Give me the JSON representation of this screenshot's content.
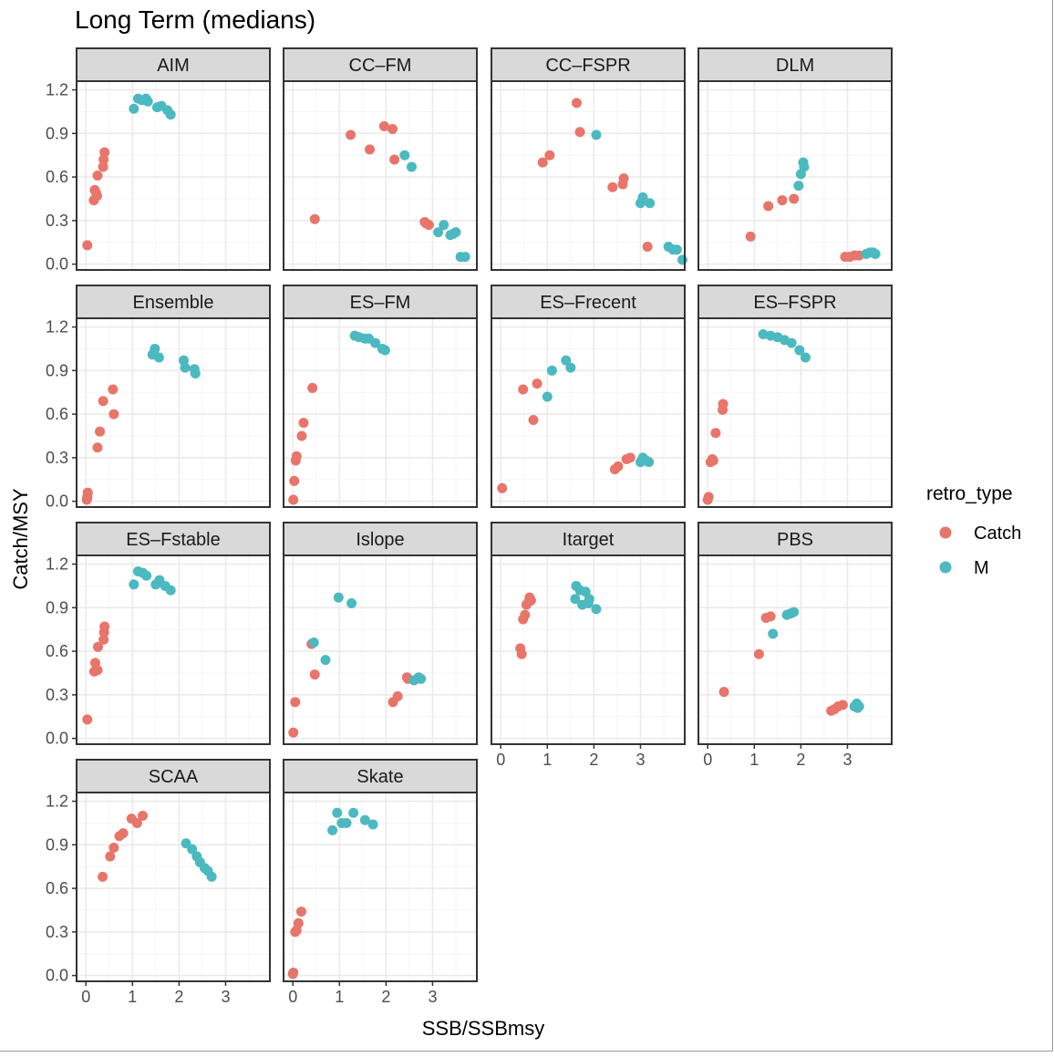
{
  "title": "Long Term (medians)",
  "x_label": "SSB/SSBmsy",
  "y_label": "Catch/MSY",
  "legend": {
    "title": "retro_type",
    "items": [
      "Catch",
      "M"
    ]
  },
  "colors": {
    "Catch": "#e8756a",
    "M": "#4cb9c0",
    "strip_fill": "#d9d9d9",
    "panel_border": "#333333",
    "grid_major": "#ebebeb",
    "grid_minor": "#f5f5f5"
  },
  "chart_data": {
    "type": "scatter",
    "title": "Long Term (medians)",
    "xlabel": "SSB/SSBmsy",
    "ylabel": "Catch/MSY",
    "xlim": [
      -0.2,
      3.95
    ],
    "ylim": [
      -0.04,
      1.26
    ],
    "x_ticks": [
      "0",
      "1",
      "2",
      "3"
    ],
    "y_ticks": [
      "0.0",
      "0.3",
      "0.6",
      "0.9",
      "1.2"
    ],
    "grid": true,
    "legend_position": "right",
    "facets": [
      {
        "name": "AIM",
        "Catch": [
          [
            0.03,
            0.13
          ],
          [
            0.17,
            0.44
          ],
          [
            0.19,
            0.51
          ],
          [
            0.22,
            0.49
          ],
          [
            0.24,
            0.47
          ],
          [
            0.25,
            0.61
          ],
          [
            0.37,
            0.67
          ],
          [
            0.38,
            0.72
          ],
          [
            0.4,
            0.77
          ]
        ],
        "M": [
          [
            1.03,
            1.07
          ],
          [
            1.12,
            1.14
          ],
          [
            1.2,
            1.13
          ],
          [
            1.29,
            1.14
          ],
          [
            1.33,
            1.12
          ],
          [
            1.53,
            1.08
          ],
          [
            1.62,
            1.09
          ],
          [
            1.75,
            1.06
          ],
          [
            1.82,
            1.03
          ]
        ]
      },
      {
        "name": "CC–FM",
        "Catch": [
          [
            0.47,
            0.31
          ],
          [
            1.24,
            0.89
          ],
          [
            1.65,
            0.79
          ],
          [
            1.96,
            0.95
          ],
          [
            2.14,
            0.93
          ],
          [
            2.18,
            0.72
          ],
          [
            2.83,
            0.29
          ],
          [
            2.86,
            0.28
          ],
          [
            2.92,
            0.27
          ]
        ],
        "M": [
          [
            2.4,
            0.75
          ],
          [
            2.55,
            0.67
          ],
          [
            3.12,
            0.22
          ],
          [
            3.24,
            0.27
          ],
          [
            3.38,
            0.2
          ],
          [
            3.45,
            0.21
          ],
          [
            3.5,
            0.22
          ],
          [
            3.6,
            0.05
          ],
          [
            3.7,
            0.05
          ]
        ]
      },
      {
        "name": "CC–FSPR",
        "Catch": [
          [
            0.9,
            0.7
          ],
          [
            1.05,
            0.75
          ],
          [
            1.63,
            1.11
          ],
          [
            1.7,
            0.91
          ],
          [
            2.4,
            0.53
          ],
          [
            2.62,
            0.55
          ],
          [
            2.64,
            0.59
          ],
          [
            3.15,
            0.12
          ]
        ],
        "M": [
          [
            2.05,
            0.89
          ],
          [
            3.0,
            0.42
          ],
          [
            3.05,
            0.46
          ],
          [
            3.2,
            0.42
          ],
          [
            3.6,
            0.12
          ],
          [
            3.7,
            0.1
          ],
          [
            3.78,
            0.1
          ],
          [
            3.9,
            0.03
          ]
        ]
      },
      {
        "name": "DLM",
        "Catch": [
          [
            0.92,
            0.19
          ],
          [
            1.3,
            0.4
          ],
          [
            1.6,
            0.44
          ],
          [
            1.85,
            0.45
          ],
          [
            2.95,
            0.05
          ],
          [
            3.05,
            0.05
          ],
          [
            3.15,
            0.06
          ],
          [
            3.25,
            0.06
          ]
        ],
        "M": [
          [
            1.95,
            0.54
          ],
          [
            2.0,
            0.62
          ],
          [
            2.05,
            0.7
          ],
          [
            2.07,
            0.67
          ],
          [
            3.4,
            0.07
          ],
          [
            3.48,
            0.08
          ],
          [
            3.55,
            0.08
          ],
          [
            3.6,
            0.07
          ]
        ]
      },
      {
        "name": "Ensemble",
        "Catch": [
          [
            0.02,
            0.01
          ],
          [
            0.03,
            0.03
          ],
          [
            0.04,
            0.06
          ],
          [
            0.25,
            0.37
          ],
          [
            0.3,
            0.48
          ],
          [
            0.37,
            0.69
          ],
          [
            0.58,
            0.77
          ],
          [
            0.6,
            0.6
          ]
        ],
        "M": [
          [
            1.43,
            1.01
          ],
          [
            1.48,
            1.05
          ],
          [
            1.57,
            0.99
          ],
          [
            2.1,
            0.97
          ],
          [
            2.13,
            0.92
          ],
          [
            2.33,
            0.91
          ],
          [
            2.35,
            0.88
          ]
        ]
      },
      {
        "name": "ES–FM",
        "Catch": [
          [
            0.01,
            0.01
          ],
          [
            0.03,
            0.14
          ],
          [
            0.06,
            0.28
          ],
          [
            0.08,
            0.31
          ],
          [
            0.19,
            0.45
          ],
          [
            0.23,
            0.54
          ],
          [
            0.42,
            0.78
          ]
        ],
        "M": [
          [
            1.33,
            1.14
          ],
          [
            1.42,
            1.13
          ],
          [
            1.55,
            1.12
          ],
          [
            1.63,
            1.12
          ],
          [
            1.77,
            1.09
          ],
          [
            1.92,
            1.05
          ],
          [
            1.98,
            1.04
          ]
        ]
      },
      {
        "name": "ES–Frecent",
        "Catch": [
          [
            0.03,
            0.09
          ],
          [
            0.48,
            0.77
          ],
          [
            0.7,
            0.56
          ],
          [
            0.78,
            0.81
          ],
          [
            2.45,
            0.22
          ],
          [
            2.52,
            0.24
          ],
          [
            2.7,
            0.29
          ],
          [
            2.78,
            0.3
          ]
        ],
        "M": [
          [
            1.0,
            0.72
          ],
          [
            1.1,
            0.9
          ],
          [
            1.4,
            0.97
          ],
          [
            1.5,
            0.92
          ],
          [
            3.0,
            0.27
          ],
          [
            3.05,
            0.3
          ],
          [
            3.12,
            0.28
          ],
          [
            3.18,
            0.27
          ]
        ]
      },
      {
        "name": "ES–FSPR",
        "Catch": [
          [
            0.0,
            0.01
          ],
          [
            0.02,
            0.03
          ],
          [
            0.06,
            0.27
          ],
          [
            0.1,
            0.29
          ],
          [
            0.12,
            0.28
          ],
          [
            0.17,
            0.47
          ],
          [
            0.32,
            0.63
          ],
          [
            0.33,
            0.67
          ]
        ],
        "M": [
          [
            1.19,
            1.15
          ],
          [
            1.35,
            1.14
          ],
          [
            1.5,
            1.13
          ],
          [
            1.65,
            1.11
          ],
          [
            1.8,
            1.09
          ],
          [
            1.97,
            1.04
          ],
          [
            2.1,
            0.99
          ]
        ]
      },
      {
        "name": "ES–Fstable",
        "Catch": [
          [
            0.03,
            0.13
          ],
          [
            0.18,
            0.46
          ],
          [
            0.2,
            0.52
          ],
          [
            0.25,
            0.47
          ],
          [
            0.26,
            0.63
          ],
          [
            0.38,
            0.68
          ],
          [
            0.39,
            0.73
          ],
          [
            0.4,
            0.77
          ]
        ],
        "M": [
          [
            1.03,
            1.06
          ],
          [
            1.12,
            1.15
          ],
          [
            1.22,
            1.14
          ],
          [
            1.3,
            1.12
          ],
          [
            1.5,
            1.06
          ],
          [
            1.58,
            1.09
          ],
          [
            1.7,
            1.05
          ],
          [
            1.82,
            1.02
          ]
        ]
      },
      {
        "name": "Islope",
        "Catch": [
          [
            0.01,
            0.04
          ],
          [
            0.05,
            0.25
          ],
          [
            0.4,
            0.65
          ],
          [
            0.47,
            0.44
          ],
          [
            2.15,
            0.25
          ],
          [
            2.25,
            0.29
          ],
          [
            2.45,
            0.42
          ],
          [
            2.47,
            0.41
          ]
        ],
        "M": [
          [
            0.98,
            0.97
          ],
          [
            1.26,
            0.93
          ],
          [
            0.45,
            0.66
          ],
          [
            0.7,
            0.54
          ],
          [
            2.6,
            0.4
          ],
          [
            2.7,
            0.42
          ],
          [
            2.75,
            0.41
          ]
        ]
      },
      {
        "name": "Itarget",
        "Catch": [
          [
            0.42,
            0.62
          ],
          [
            0.45,
            0.58
          ],
          [
            0.48,
            0.82
          ],
          [
            0.52,
            0.85
          ],
          [
            0.55,
            0.92
          ],
          [
            0.6,
            0.94
          ],
          [
            0.62,
            0.97
          ],
          [
            0.65,
            0.95
          ]
        ],
        "M": [
          [
            1.6,
            0.96
          ],
          [
            1.62,
            1.05
          ],
          [
            1.7,
            1.02
          ],
          [
            1.75,
            0.92
          ],
          [
            1.82,
            1.01
          ],
          [
            1.88,
            0.93
          ],
          [
            1.9,
            0.96
          ],
          [
            2.05,
            0.89
          ]
        ]
      },
      {
        "name": "PBS",
        "Catch": [
          [
            0.35,
            0.32
          ],
          [
            1.1,
            0.58
          ],
          [
            1.25,
            0.83
          ],
          [
            1.35,
            0.84
          ],
          [
            2.65,
            0.19
          ],
          [
            2.72,
            0.2
          ],
          [
            2.8,
            0.22
          ],
          [
            2.9,
            0.23
          ]
        ],
        "M": [
          [
            1.4,
            0.72
          ],
          [
            1.7,
            0.85
          ],
          [
            1.78,
            0.86
          ],
          [
            1.85,
            0.87
          ],
          [
            3.15,
            0.22
          ],
          [
            3.2,
            0.24
          ],
          [
            3.22,
            0.21
          ],
          [
            3.25,
            0.22
          ]
        ]
      },
      {
        "name": "SCAA",
        "Catch": [
          [
            0.36,
            0.68
          ],
          [
            0.52,
            0.82
          ],
          [
            0.6,
            0.88
          ],
          [
            0.72,
            0.96
          ],
          [
            0.8,
            0.98
          ],
          [
            0.98,
            1.08
          ],
          [
            1.1,
            1.05
          ],
          [
            1.22,
            1.1
          ]
        ],
        "M": [
          [
            2.15,
            0.91
          ],
          [
            2.28,
            0.87
          ],
          [
            2.38,
            0.82
          ],
          [
            2.45,
            0.78
          ],
          [
            2.55,
            0.74
          ],
          [
            2.62,
            0.72
          ],
          [
            2.7,
            0.68
          ]
        ]
      },
      {
        "name": "Skate",
        "Catch": [
          [
            0.0,
            0.01
          ],
          [
            0.01,
            0.02
          ],
          [
            0.05,
            0.3
          ],
          [
            0.08,
            0.31
          ],
          [
            0.12,
            0.36
          ],
          [
            0.18,
            0.44
          ]
        ],
        "M": [
          [
            0.85,
            1.0
          ],
          [
            0.95,
            1.12
          ],
          [
            1.05,
            1.05
          ],
          [
            1.15,
            1.05
          ],
          [
            1.3,
            1.12
          ],
          [
            1.55,
            1.07
          ],
          [
            1.72,
            1.04
          ]
        ]
      }
    ]
  }
}
